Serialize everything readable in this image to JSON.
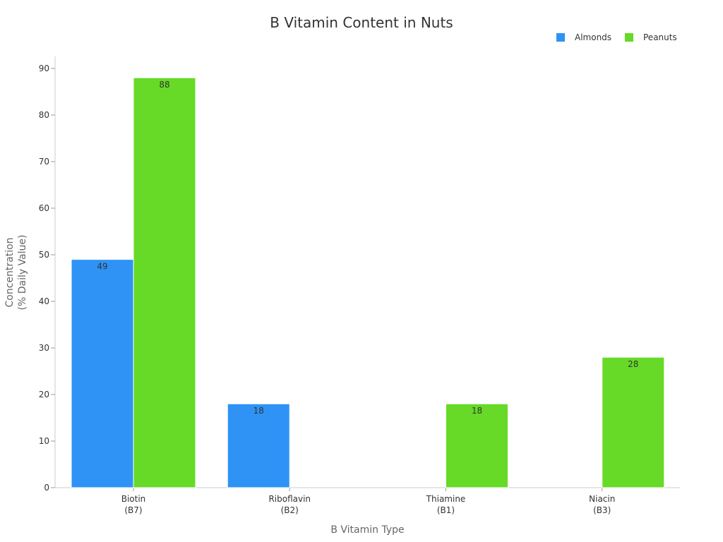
{
  "chart_data": {
    "type": "bar",
    "title": "B Vitamin Content in Nuts",
    "xlabel": "B Vitamin Type",
    "ylabel": [
      "Concentration",
      "(% Daily Value)"
    ],
    "categories": [
      [
        "Biotin",
        "(B7)"
      ],
      [
        "Riboflavin",
        "(B2)"
      ],
      [
        "Thiamine",
        "(B1)"
      ],
      [
        "Niacin",
        "(B3)"
      ]
    ],
    "series": [
      {
        "name": "Almonds",
        "color": "#2E93F5",
        "values": [
          49,
          18,
          null,
          null
        ]
      },
      {
        "name": "Peanuts",
        "color": "#66DA26",
        "values": [
          88,
          null,
          18,
          28
        ]
      }
    ],
    "ylim": [
      0,
      90
    ],
    "yticks": [
      0,
      10,
      20,
      30,
      40,
      50,
      60,
      70,
      80,
      90
    ],
    "grid": false,
    "legend_position": "top-right",
    "data_labels": true
  }
}
